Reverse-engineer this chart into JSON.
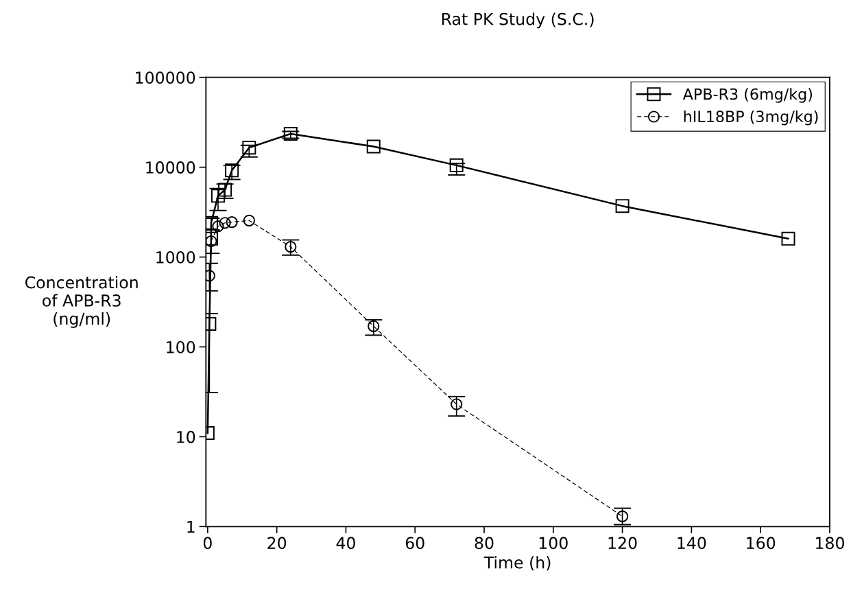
{
  "chart_data": {
    "type": "line",
    "title": "Rat PK Study (S.C.)",
    "xlabel": "Time (h)",
    "ylabel": "Concentration\nof APB-R3\n(ng/ml)",
    "log": "y",
    "xlim": [
      -0.5,
      180
    ],
    "xticks": [
      0,
      20,
      40,
      60,
      80,
      100,
      120,
      140,
      160,
      180
    ],
    "ylim": [
      1,
      100000
    ],
    "yticks": [
      1,
      10,
      100,
      1000,
      10000,
      100000
    ],
    "grid": false,
    "legend": "top right",
    "series": [
      {
        "name": "APB-R3 (6mg/kg)",
        "color": "#000000",
        "marker": "square",
        "line_style": "solid",
        "x": [
          0,
          0.5,
          1,
          1,
          3,
          5,
          7,
          12,
          24,
          48,
          72,
          120,
          168
        ],
        "values": [
          11,
          180,
          1600,
          2400,
          4800,
          5600,
          9200,
          16500,
          23500,
          17000,
          10500,
          3700,
          1600
        ],
        "errors": [
          null,
          [
            31,
            235
          ],
          [
            1100,
            2000
          ],
          [
            2000,
            2700
          ],
          [
            3300,
            5800
          ],
          [
            4500,
            6500
          ],
          [
            7300,
            10500
          ],
          [
            13000,
            17500
          ],
          [
            21000,
            25000
          ],
          null,
          [
            8200,
            11000
          ],
          null,
          null
        ]
      },
      {
        "name": "hIL18BP (3mg/kg)",
        "color": "#000000",
        "marker": "circle",
        "line_style": "dashed",
        "x": [
          0.5,
          1,
          3,
          5,
          7,
          12,
          24,
          48,
          72,
          120
        ],
        "values": [
          620,
          1500,
          2200,
          2400,
          2450,
          2550,
          1300,
          170,
          23,
          1.3
        ],
        "errors": [
          [
            420,
            850
          ],
          null,
          null,
          null,
          null,
          null,
          [
            1050,
            1550
          ],
          [
            135,
            200
          ],
          [
            17,
            28
          ],
          [
            1.05,
            1.6
          ]
        ]
      }
    ]
  }
}
